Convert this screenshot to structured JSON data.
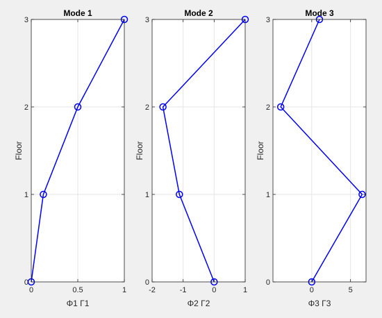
{
  "chart_data": [
    {
      "type": "line",
      "title": "Mode 1",
      "xlabel": "Φ1 Γ1",
      "ylabel": "Floor",
      "xlim": [
        0,
        1
      ],
      "ylim": [
        0,
        3
      ],
      "xticks": [
        0,
        0.5,
        1
      ],
      "xtick_labels": [
        "0",
        "0.5",
        "1"
      ],
      "yticks": [
        0,
        1,
        2,
        3
      ],
      "ytick_labels": [
        "0",
        "1",
        "2",
        "3"
      ],
      "grid": true,
      "marker": "circle",
      "color": "#0000ff",
      "x": [
        0,
        0.13,
        0.5,
        1
      ],
      "y": [
        0,
        1,
        2,
        3
      ]
    },
    {
      "type": "line",
      "title": "Mode 2",
      "xlabel": "Φ2 Γ2",
      "ylabel": "Floor",
      "xlim": [
        -2,
        1
      ],
      "ylim": [
        0,
        3
      ],
      "xticks": [
        -2,
        -1,
        0,
        1
      ],
      "xtick_labels": [
        "-2",
        "-1",
        "0",
        "1"
      ],
      "yticks": [
        0,
        1,
        2,
        3
      ],
      "ytick_labels": [
        "0",
        "1",
        "2",
        "3"
      ],
      "grid": true,
      "marker": "circle",
      "color": "#0000ff",
      "x": [
        0,
        -1.12,
        -1.65,
        1
      ],
      "y": [
        0,
        1,
        2,
        3
      ]
    },
    {
      "type": "line",
      "title": "Mode 3",
      "xlabel": "Φ3 Γ3",
      "ylabel": "Floor",
      "xlim": [
        -5,
        7
      ],
      "ylim": [
        0,
        3
      ],
      "xticks": [
        0,
        5
      ],
      "xtick_labels": [
        "0",
        "5"
      ],
      "yticks": [
        0,
        1,
        2,
        3
      ],
      "ytick_labels": [
        "0",
        "1",
        "2",
        "3"
      ],
      "grid": true,
      "marker": "circle",
      "color": "#0000ff",
      "x": [
        0,
        6.5,
        -4,
        1
      ],
      "y": [
        0,
        1,
        2,
        3
      ]
    }
  ]
}
